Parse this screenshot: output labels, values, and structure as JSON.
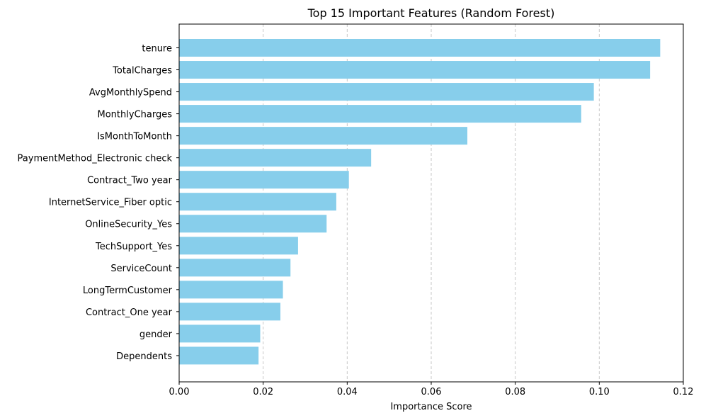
{
  "chart_data": {
    "type": "bar",
    "orientation": "horizontal",
    "title": "Top 15 Important Features (Random Forest)",
    "xlabel": "Importance Score",
    "ylabel": "",
    "xlim": [
      0,
      0.12
    ],
    "xticks": [
      "0.00",
      "0.02",
      "0.04",
      "0.06",
      "0.08",
      "0.10",
      "0.12"
    ],
    "grid": "x-dashed",
    "bar_color": "#87ceeb",
    "categories": [
      "tenure",
      "TotalCharges",
      "AvgMonthlySpend",
      "MonthlyCharges",
      "IsMonthToMonth",
      "PaymentMethod_Electronic check",
      "Contract_Two year",
      "InternetService_Fiber optic",
      "OnlineSecurity_Yes",
      "TechSupport_Yes",
      "ServiceCount",
      "LongTermCustomer",
      "Contract_One year",
      "gender",
      "Dependents"
    ],
    "values": [
      0.1145,
      0.1121,
      0.0987,
      0.0957,
      0.0686,
      0.0457,
      0.0404,
      0.0374,
      0.0351,
      0.0283,
      0.0265,
      0.0247,
      0.0241,
      0.0193,
      0.0189
    ]
  }
}
